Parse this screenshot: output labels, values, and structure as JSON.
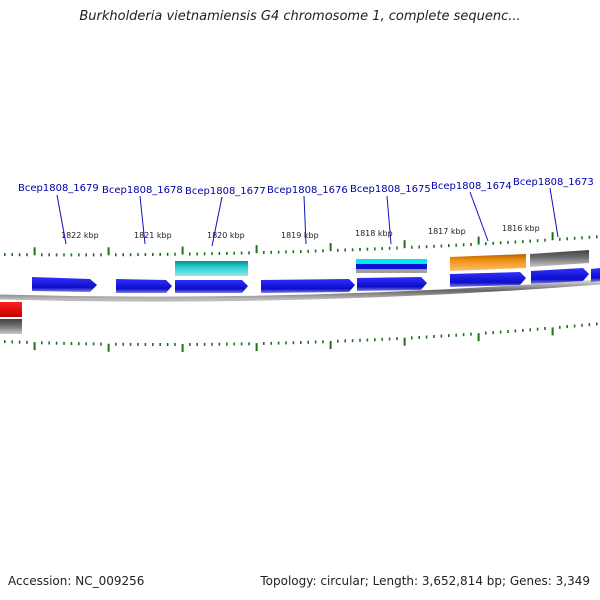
{
  "title": "Burkholderia vietnamiensis G4 chromosome 1, complete sequenc...",
  "footer": {
    "accession_label": "Accession:",
    "accession": "NC_009256",
    "summary": "Topology: circular; Length: 3,652,814 bp; Genes: 3,349"
  },
  "ticks": [
    "1822 kbp",
    "1821 kbp",
    "1820 kbp",
    "1819 kbp",
    "1818 kbp",
    "1817 kbp",
    "1816 kbp"
  ],
  "gene_labels": [
    "Bcep1808_1679",
    "Bcep1808_1678",
    "Bcep1808_1677",
    "Bcep1808_1676",
    "Bcep1808_1675",
    "Bcep1808_1674",
    "Bcep1808_1673"
  ],
  "colors": {
    "gene_blue": "#1010d0",
    "cyan": "#20c8c8",
    "bright_cyan": "#00e8f0",
    "orange": "#f09010",
    "grey": "#707070",
    "red": "#e00000",
    "tick_green": "#207020",
    "backbone": "#888888"
  }
}
